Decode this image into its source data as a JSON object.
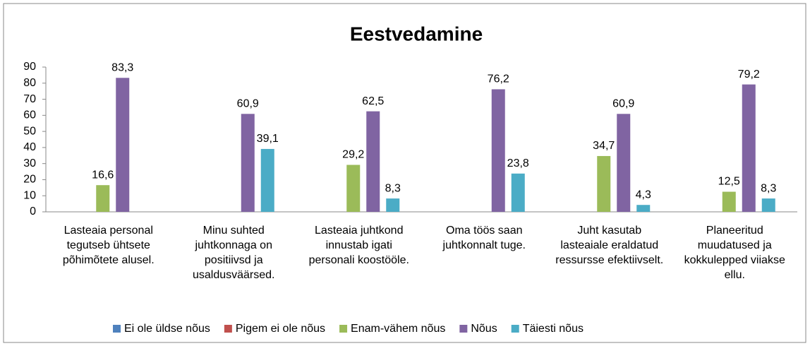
{
  "chart_data": {
    "type": "bar",
    "title": "Eestvedamine",
    "categories": [
      "Lasteaia personal tegutseb ühtsete põhimõtete alusel.",
      "Minu suhted juhtkonnaga on positiivsd ja usaldusväärsed.",
      "Lasteaia juhtkond innustab igati personali koostööle.",
      "Oma töös saan juhtkonnalt tuge.",
      "Juht kasutab lasteaiale eraldatud ressursse efektiivselt.",
      "Planeeritud muudatused ja kokkulepped viiakse ellu."
    ],
    "series": [
      {
        "name": "Ei ole üldse nõus",
        "color": "#4f81bd",
        "values": [
          null,
          null,
          null,
          null,
          null,
          null
        ]
      },
      {
        "name": "Pigem ei ole nõus",
        "color": "#c0504d",
        "values": [
          null,
          null,
          null,
          null,
          null,
          null
        ]
      },
      {
        "name": "Enam-vähem nõus",
        "color": "#9bbb59",
        "values": [
          16.6,
          null,
          29.2,
          null,
          34.7,
          12.5
        ],
        "value_labels": [
          "16,6",
          null,
          "29,2",
          null,
          "34,7",
          "12,5"
        ]
      },
      {
        "name": "Nõus",
        "color": "#8064a2",
        "values": [
          83.3,
          60.9,
          62.5,
          76.2,
          60.9,
          79.2
        ],
        "value_labels": [
          "83,3",
          "60,9",
          "62,5",
          "76,2",
          "60,9",
          "79,2"
        ]
      },
      {
        "name": "Täiesti nõus",
        "color": "#4bacc6",
        "values": [
          null,
          39.1,
          8.3,
          23.8,
          4.3,
          8.3
        ],
        "value_labels": [
          null,
          "39,1",
          "8,3",
          "23,8",
          "4,3",
          "8,3"
        ]
      }
    ],
    "ylim": [
      0,
      90
    ],
    "yticks": [
      0,
      10,
      20,
      30,
      40,
      50,
      60,
      70,
      80,
      90
    ],
    "legend": "bottom"
  }
}
